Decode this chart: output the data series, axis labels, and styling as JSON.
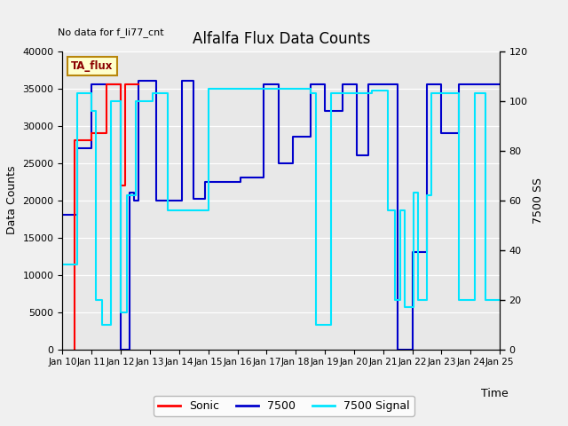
{
  "title": "Alfalfa Flux Data Counts",
  "xlabel": "Time",
  "ylabel_left": "Data Counts",
  "ylabel_right": "7500 SS",
  "note": "No data for f_li77_cnt",
  "ta_flux_label": "TA_flux",
  "ylim_left": [
    0,
    40000
  ],
  "ylim_right": [
    0,
    120
  ],
  "plot_bg": "#e8e8e8",
  "fig_bg": "#f0f0f0",
  "sonic_color": "#ff0000",
  "data7500_color": "#0000cc",
  "signal_color": "#00e5ff",
  "sonic_x": [
    10.4,
    10.4,
    11.0,
    11.0,
    11.5,
    11.5,
    12.0,
    12.0,
    12.15,
    12.15,
    12.3,
    12.3,
    12.45,
    12.45,
    12.6
  ],
  "sonic_y": [
    0,
    28000,
    28000,
    29000,
    29000,
    35500,
    35500,
    22000,
    22000,
    35500,
    35500,
    35600,
    35600,
    35600,
    35600
  ],
  "data7500_x": [
    10.0,
    10.5,
    10.5,
    11.0,
    11.0,
    11.5,
    11.5,
    12.0,
    12.0,
    12.3,
    12.3,
    12.45,
    12.45,
    12.6,
    12.6,
    13.2,
    13.2,
    14.1,
    14.1,
    14.5,
    14.5,
    14.9,
    14.9,
    15.5,
    15.5,
    16.1,
    16.1,
    16.9,
    16.9,
    17.4,
    17.4,
    17.9,
    17.9,
    18.5,
    18.5,
    19.0,
    19.0,
    19.6,
    19.6,
    20.1,
    20.1,
    20.5,
    20.5,
    21.0,
    21.0,
    21.5,
    21.5,
    22.0,
    22.0,
    22.5,
    22.5,
    23.0,
    23.0,
    23.6,
    23.6,
    24.1,
    24.1,
    25.0
  ],
  "data7500_y": [
    18000,
    18000,
    27000,
    27000,
    35500,
    35500,
    35500,
    35500,
    0,
    0,
    21000,
    21000,
    20000,
    20000,
    36000,
    36000,
    20000,
    20000,
    36000,
    36000,
    20200,
    20200,
    22500,
    22500,
    22500,
    22500,
    23000,
    23000,
    35500,
    35500,
    25000,
    25000,
    28500,
    28500,
    35500,
    35500,
    32000,
    32000,
    35500,
    35500,
    26000,
    26000,
    35500,
    35500,
    35500,
    35500,
    0,
    0,
    13000,
    13000,
    35500,
    35500,
    29000,
    29000,
    35500,
    35500,
    35500,
    35500
  ],
  "signal_x": [
    10.0,
    10.5,
    10.5,
    11.0,
    11.0,
    11.15,
    11.15,
    11.35,
    11.35,
    11.65,
    11.65,
    12.0,
    12.0,
    12.2,
    12.2,
    12.5,
    12.5,
    13.1,
    13.1,
    13.6,
    13.6,
    14.1,
    14.1,
    14.4,
    14.4,
    14.6,
    14.6,
    15.0,
    15.0,
    17.5,
    17.5,
    18.5,
    18.5,
    18.7,
    18.7,
    19.2,
    19.2,
    20.1,
    20.1,
    20.6,
    20.6,
    21.0,
    21.0,
    21.15,
    21.15,
    21.4,
    21.4,
    21.6,
    21.6,
    21.75,
    21.75,
    22.05,
    22.05,
    22.2,
    22.2,
    22.5,
    22.5,
    22.65,
    22.65,
    23.0,
    23.0,
    23.6,
    23.6,
    24.15,
    24.15,
    24.5,
    24.5,
    25.0
  ],
  "signal_y": [
    34,
    34,
    103,
    103,
    96,
    96,
    20,
    20,
    10,
    10,
    100,
    100,
    15,
    15,
    62,
    62,
    100,
    100,
    103,
    103,
    56,
    56,
    56,
    56,
    56,
    56,
    56,
    56,
    105,
    105,
    105,
    105,
    103,
    103,
    10,
    10,
    103,
    103,
    103,
    103,
    104,
    104,
    104,
    104,
    56,
    56,
    20,
    20,
    56,
    56,
    17,
    17,
    63,
    63,
    20,
    20,
    62,
    62,
    103,
    103,
    103,
    103,
    20,
    20,
    103,
    103,
    20,
    20
  ],
  "xticks": [
    10,
    11,
    12,
    13,
    14,
    15,
    16,
    17,
    18,
    19,
    20,
    21,
    22,
    23,
    24,
    25
  ],
  "xlim": [
    10,
    25
  ]
}
